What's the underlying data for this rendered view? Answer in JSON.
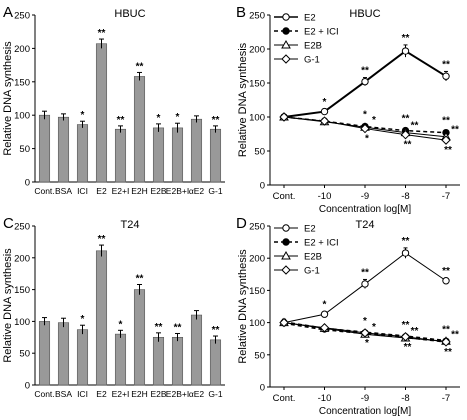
{
  "chart_data": [
    {
      "panel": "A",
      "type": "bar",
      "title": "HBUC",
      "ylabel": "Relative DNA synthesis",
      "xlabel": "",
      "ylim": [
        0,
        250
      ],
      "yticks": [
        0,
        50,
        100,
        150,
        200,
        250
      ],
      "categories": [
        "Cont.",
        "BSA",
        "ICI",
        "E2",
        "E2+I",
        "E2H",
        "E2B",
        "E2B+I",
        "αE2",
        "G-1"
      ],
      "values": [
        100,
        97,
        86,
        207,
        79,
        158,
        81,
        81,
        94,
        79
      ],
      "errors": [
        6,
        5,
        5,
        7,
        5,
        6,
        6,
        7,
        5,
        5
      ],
      "significance": [
        "",
        "",
        "*",
        "**",
        "**",
        "**",
        "*",
        "*",
        "",
        "**"
      ],
      "bar_color": "#999999"
    },
    {
      "panel": "B",
      "type": "line",
      "title": "HBUC",
      "ylabel": "Relative DNA synthesis",
      "xlabel": "Concentration log[M]",
      "x": [
        "Cont.",
        "-10",
        "-9",
        "-8",
        "-7"
      ],
      "ylim": [
        0,
        250
      ],
      "yticks": [
        0,
        50,
        100,
        150,
        200,
        250
      ],
      "series": [
        {
          "name": "E2",
          "marker": "circle-open",
          "dash": "solid",
          "width": 2,
          "values": [
            100,
            108,
            152,
            197,
            160
          ],
          "errors": [
            3,
            4,
            6,
            9,
            7
          ],
          "significance": [
            "",
            "*",
            "**",
            "**",
            "**"
          ]
        },
        {
          "name": "E2 + ICI",
          "marker": "circle-filled",
          "dash": "dashed",
          "width": 1.5,
          "values": [
            100,
            94,
            86,
            80,
            77
          ],
          "errors": [
            3,
            4,
            3,
            3,
            3
          ],
          "significance": [
            "",
            "",
            "*",
            "**",
            "**"
          ]
        },
        {
          "name": "E2B",
          "marker": "triangle-open",
          "dash": "solid",
          "width": 1,
          "values": [
            100,
            93,
            85,
            77,
            71
          ],
          "errors": [
            3,
            3,
            3,
            3,
            3
          ],
          "significance": [
            "",
            "",
            "*",
            "**",
            "**"
          ]
        },
        {
          "name": "G-1",
          "marker": "diamond-open",
          "dash": "solid",
          "width": 1,
          "values": [
            100,
            94,
            83,
            74,
            66
          ],
          "errors": [
            3,
            3,
            3,
            3,
            3
          ],
          "significance": [
            "",
            "",
            "*",
            "**",
            "**"
          ]
        }
      ]
    },
    {
      "panel": "C",
      "type": "bar",
      "title": "T24",
      "ylabel": "Relative DNA synthesis",
      "xlabel": "",
      "ylim": [
        0,
        250
      ],
      "yticks": [
        0,
        50,
        100,
        150,
        200,
        250
      ],
      "categories": [
        "Cont.",
        "BSA",
        "ICI",
        "E2",
        "E2+I",
        "E2H",
        "E2B",
        "E2B+I",
        "αE2",
        "G-1"
      ],
      "values": [
        100,
        98,
        87,
        211,
        80,
        150,
        75,
        75,
        110,
        71
      ],
      "errors": [
        6,
        7,
        7,
        9,
        6,
        8,
        7,
        6,
        7,
        6
      ],
      "significance": [
        "",
        "",
        "*",
        "**",
        "*",
        "**",
        "**",
        "**",
        "",
        "**"
      ],
      "bar_color": "#999999"
    },
    {
      "panel": "D",
      "type": "line",
      "title": "T24",
      "ylabel": "Relative DNA synthesis",
      "xlabel": "Concentration log[M]",
      "x": [
        "Cont.",
        "-10",
        "-9",
        "-8",
        "-7"
      ],
      "ylim": [
        0,
        250
      ],
      "yticks": [
        0,
        50,
        100,
        150,
        200,
        250
      ],
      "series": [
        {
          "name": "E2",
          "marker": "circle-open",
          "dash": "solid",
          "width": 1,
          "values": [
            100,
            113,
            160,
            208,
            165
          ],
          "errors": [
            5,
            4,
            7,
            8,
            4
          ],
          "significance": [
            "",
            "*",
            "**",
            "**",
            "**"
          ]
        },
        {
          "name": "E2 + ICI",
          "marker": "circle-filled",
          "dash": "dashed",
          "width": 3,
          "values": [
            100,
            90,
            84,
            78,
            71
          ],
          "errors": [
            5,
            3,
            3,
            3,
            3
          ],
          "significance": [
            "",
            "",
            "*",
            "**",
            "**"
          ]
        },
        {
          "name": "E2B",
          "marker": "triangle-open",
          "dash": "solid",
          "width": 1,
          "values": [
            100,
            91,
            82,
            76,
            71
          ],
          "errors": [
            5,
            3,
            3,
            3,
            3
          ],
          "significance": [
            "",
            "",
            "*",
            "**",
            "**"
          ]
        },
        {
          "name": "G-1",
          "marker": "diamond-open",
          "dash": "solid",
          "width": 1,
          "values": [
            100,
            92,
            84,
            78,
            70
          ],
          "errors": [
            5,
            3,
            3,
            3,
            3
          ],
          "significance": [
            "",
            "",
            "*",
            "**",
            "**"
          ]
        }
      ]
    }
  ]
}
